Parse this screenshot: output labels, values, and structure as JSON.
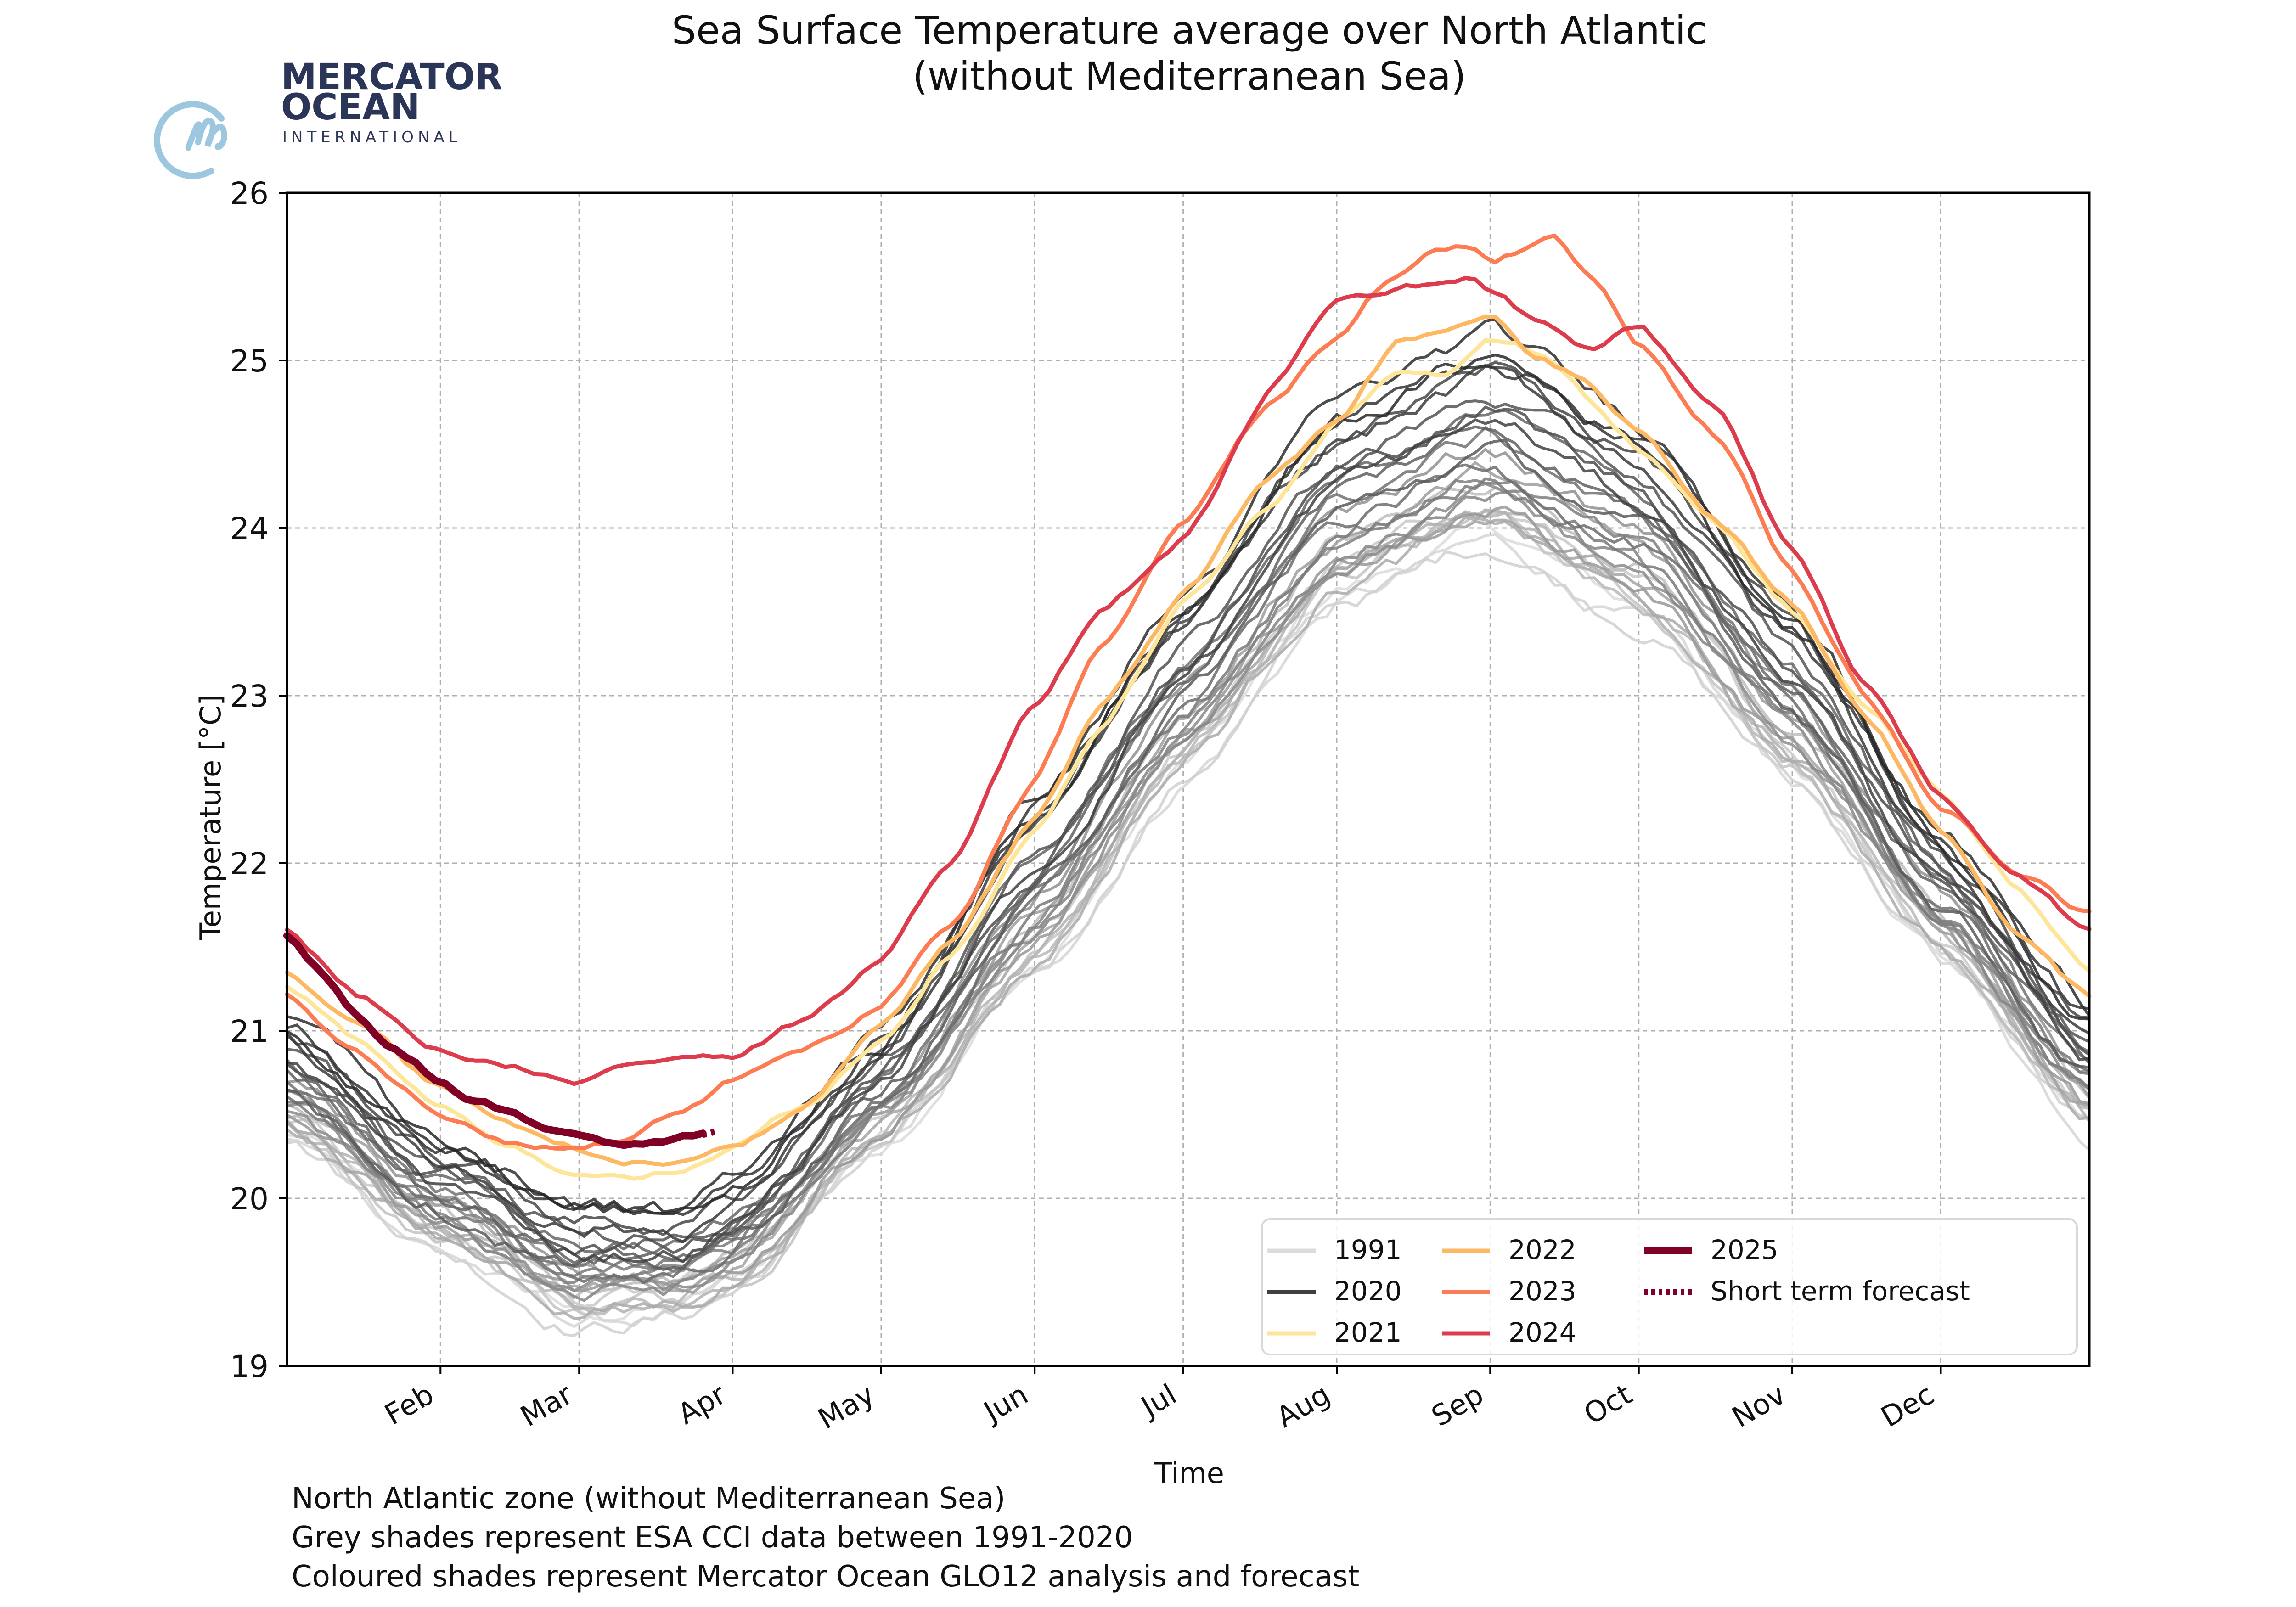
{
  "logo": {
    "line1": "MERCATOR",
    "line2": "OCEAN",
    "line3": "INTERNATIONAL",
    "icon": "mercator-m-circle-icon",
    "colors": {
      "text": "#2a3558",
      "icon": "#9cc7df"
    }
  },
  "footnotes": [
    "North Atlantic zone (without Mediterranean Sea)",
    "Grey shades represent ESA CCI data between 1991-2020",
    "Coloured shades represent Mercator Ocean GLO12 analysis and forecast"
  ],
  "chart_data": {
    "type": "line",
    "title": "Sea Surface Temperature average over North Atlantic",
    "subtitle": "(without Mediterranean Sea)",
    "xlabel": "Time",
    "ylabel": "Temperature [°C]",
    "ylim": [
      19,
      26
    ],
    "xlim_day_of_year": [
      1,
      365
    ],
    "yticks": [
      19,
      20,
      21,
      22,
      23,
      24,
      25,
      26
    ],
    "xticks": [
      {
        "label": "Feb",
        "day": 32
      },
      {
        "label": "Mar",
        "day": 60
      },
      {
        "label": "Apr",
        "day": 91
      },
      {
        "label": "May",
        "day": 121
      },
      {
        "label": "Jun",
        "day": 152
      },
      {
        "label": "Jul",
        "day": 182
      },
      {
        "label": "Aug",
        "day": 213
      },
      {
        "label": "Sep",
        "day": 244
      },
      {
        "label": "Oct",
        "day": 274
      },
      {
        "label": "Nov",
        "day": 305
      },
      {
        "label": "Dec",
        "day": 335
      }
    ],
    "grid": true,
    "legend": {
      "placement": "bottom-right",
      "columns": 3,
      "entries": [
        {
          "label": "1991",
          "color": "#dcdcdc",
          "style": "solid"
        },
        {
          "label": "2020",
          "color": "#404040",
          "style": "solid"
        },
        {
          "label": "2021",
          "color": "#fde59a",
          "style": "solid"
        },
        {
          "label": "2022",
          "color": "#fdb863",
          "style": "solid"
        },
        {
          "label": "2023",
          "color": "#fc7c54",
          "style": "solid"
        },
        {
          "label": "2024",
          "color": "#dc3c4c",
          "style": "solid"
        },
        {
          "label": "2025",
          "color": "#800026",
          "style": "thick"
        },
        {
          "label": "Short term forecast",
          "color": "#800026",
          "style": "dotted"
        }
      ]
    },
    "climatology_grey": {
      "years": "1991-2020",
      "count": 30,
      "min_envelope": {
        "days": [
          1,
          32,
          60,
          80,
          91,
          121,
          152,
          182,
          213,
          244,
          274,
          305,
          335,
          365
        ],
        "values": [
          20.35,
          19.7,
          19.25,
          19.3,
          19.45,
          20.3,
          21.3,
          22.5,
          23.55,
          23.9,
          23.45,
          22.5,
          21.45,
          20.4
        ]
      },
      "max_envelope": {
        "days": [
          1,
          32,
          60,
          80,
          91,
          121,
          152,
          182,
          213,
          244,
          274,
          305,
          335,
          365
        ],
        "values": [
          21.1,
          20.35,
          20.0,
          19.95,
          20.1,
          21.0,
          22.4,
          23.6,
          24.75,
          25.15,
          24.65,
          23.55,
          22.2,
          21.15
        ]
      }
    },
    "series": [
      {
        "name": "2021",
        "color": "#fde59a",
        "days": [
          1,
          15,
          32,
          45,
          60,
          70,
          80,
          91,
          105,
          121,
          135,
          152,
          165,
          182,
          200,
          213,
          225,
          235,
          244,
          255,
          265,
          274,
          290,
          305,
          320,
          335,
          350,
          365
        ],
        "values": [
          21.25,
          20.95,
          20.55,
          20.3,
          20.15,
          20.1,
          20.15,
          20.3,
          20.55,
          20.95,
          21.45,
          22.2,
          22.8,
          23.55,
          24.15,
          24.65,
          24.95,
          24.9,
          25.15,
          25.05,
          24.75,
          24.5,
          24.0,
          23.5,
          22.95,
          22.4,
          21.85,
          21.35
        ]
      },
      {
        "name": "2022",
        "color": "#fdb863",
        "days": [
          1,
          15,
          32,
          45,
          60,
          70,
          80,
          91,
          105,
          121,
          135,
          152,
          165,
          182,
          200,
          213,
          225,
          235,
          244,
          252,
          260,
          274,
          290,
          305,
          320,
          335,
          350,
          365
        ],
        "values": [
          21.35,
          21.05,
          20.65,
          20.45,
          20.3,
          20.25,
          20.2,
          20.3,
          20.5,
          21.0,
          21.5,
          22.25,
          22.9,
          23.6,
          24.3,
          24.65,
          25.1,
          25.2,
          25.3,
          25.05,
          24.95,
          24.6,
          24.05,
          23.55,
          22.85,
          22.2,
          21.6,
          21.2
        ]
      },
      {
        "name": "2023",
        "color": "#fc7c54",
        "days": [
          1,
          15,
          32,
          45,
          60,
          70,
          80,
          91,
          105,
          121,
          135,
          152,
          165,
          182,
          200,
          213,
          222,
          232,
          240,
          244,
          250,
          257,
          265,
          274,
          290,
          305,
          320,
          335,
          350,
          365
        ],
        "values": [
          21.2,
          20.85,
          20.5,
          20.35,
          20.3,
          20.35,
          20.5,
          20.7,
          20.85,
          21.15,
          21.65,
          22.5,
          23.3,
          24.05,
          24.75,
          25.15,
          25.45,
          25.65,
          25.7,
          25.6,
          25.65,
          25.75,
          25.5,
          25.1,
          24.55,
          23.75,
          23.0,
          22.35,
          21.95,
          21.7
        ]
      },
      {
        "name": "2024",
        "color": "#dc3c4c",
        "days": [
          1,
          15,
          32,
          45,
          60,
          70,
          80,
          91,
          105,
          121,
          135,
          152,
          165,
          182,
          200,
          213,
          222,
          232,
          240,
          244,
          255,
          265,
          274,
          290,
          305,
          320,
          335,
          350,
          365
        ],
        "values": [
          21.6,
          21.2,
          20.9,
          20.8,
          20.7,
          20.8,
          20.85,
          20.85,
          21.05,
          21.4,
          22.0,
          22.95,
          23.5,
          23.95,
          24.85,
          25.35,
          25.4,
          25.45,
          25.48,
          25.4,
          25.2,
          25.05,
          25.2,
          24.7,
          23.85,
          23.05,
          22.4,
          21.9,
          21.6
        ]
      },
      {
        "name": "2025",
        "color": "#800026",
        "width": "thick",
        "days": [
          1,
          8,
          15,
          22,
          32,
          40,
          50,
          55,
          60,
          65,
          70,
          75,
          80,
          85
        ],
        "values": [
          21.58,
          21.35,
          21.12,
          20.9,
          20.7,
          20.57,
          20.45,
          20.4,
          20.38,
          20.32,
          20.3,
          20.33,
          20.35,
          20.38
        ]
      },
      {
        "name": "Short term forecast",
        "color": "#800026",
        "style": "dotted",
        "days": [
          85,
          88
        ],
        "values": [
          20.38,
          20.4
        ]
      }
    ]
  }
}
